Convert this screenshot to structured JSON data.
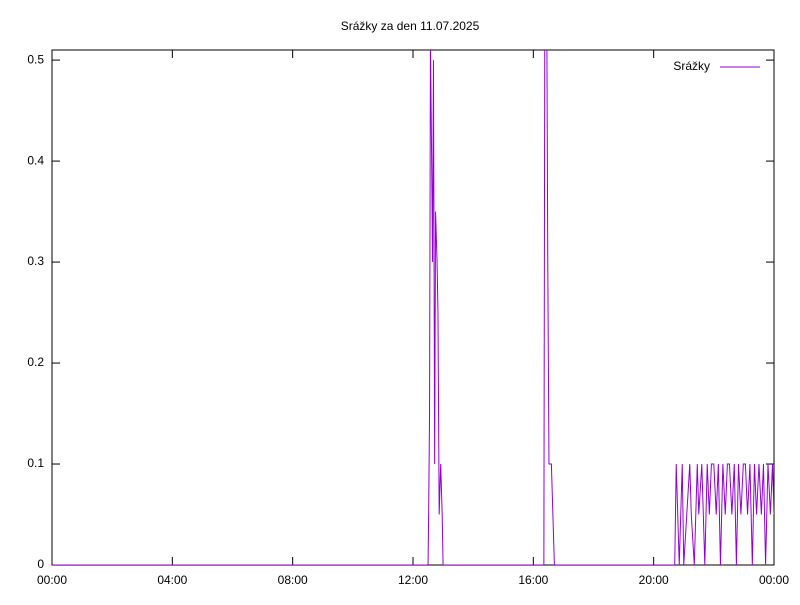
{
  "chart_data": {
    "type": "line",
    "title": "Srážky za den 11.07.2025",
    "x": [
      0,
      12.5,
      12.52,
      12.55,
      12.58,
      12.62,
      12.65,
      12.68,
      12.72,
      12.75,
      12.8,
      12.83,
      12.87,
      12.92,
      12.97,
      13.0,
      16.35,
      16.38,
      16.45,
      16.48,
      16.52,
      16.6,
      16.65,
      16.7,
      20.7,
      20.75,
      20.8,
      20.85,
      20.95,
      21.0,
      21.2,
      21.25,
      21.35,
      21.45,
      21.5,
      21.6,
      21.7,
      21.78,
      21.85,
      21.92,
      22.0,
      22.08,
      22.15,
      22.22,
      22.3,
      22.38,
      22.45,
      22.52,
      22.6,
      22.68,
      22.75,
      22.82,
      22.9,
      22.98,
      23.05,
      23.12,
      23.2,
      23.28,
      23.35,
      23.42,
      23.5,
      23.58,
      23.65,
      23.72,
      23.8,
      23.88,
      23.95,
      24.0
    ],
    "series": [
      {
        "name": "Srážky",
        "color": "#9400d3",
        "values": [
          0,
          0,
          0.05,
          0.15,
          0.52,
          0.4,
          0.3,
          0.5,
          0.1,
          0.35,
          0.3,
          0.25,
          0.05,
          0.1,
          0.05,
          0,
          0,
          0.52,
          0.52,
          0.3,
          0.1,
          0.1,
          0.05,
          0,
          0,
          0.1,
          0.05,
          0,
          0.1,
          0,
          0.1,
          0.05,
          0,
          0.1,
          0.05,
          0.1,
          0,
          0.1,
          0.05,
          0.1,
          0.1,
          0.05,
          0.1,
          0,
          0.1,
          0.05,
          0.1,
          0.1,
          0.05,
          0.1,
          0,
          0.1,
          0.05,
          0.1,
          0.1,
          0.05,
          0.1,
          0,
          0.1,
          0.05,
          0.1,
          0.05,
          0.1,
          0,
          0.1,
          0.05,
          0.1,
          0.05
        ]
      }
    ],
    "xlim": [
      0,
      24
    ],
    "xticks": [
      {
        "value": 0,
        "label": "00:00"
      },
      {
        "value": 4,
        "label": "04:00"
      },
      {
        "value": 8,
        "label": "08:00"
      },
      {
        "value": 12,
        "label": "12:00"
      },
      {
        "value": 16,
        "label": "16:00"
      },
      {
        "value": 20,
        "label": "20:00"
      },
      {
        "value": 24,
        "label": "00:00"
      }
    ],
    "ylim": [
      0,
      0.51
    ],
    "yticks": [
      0,
      0.1,
      0.2,
      0.3,
      0.4,
      0.5
    ],
    "legend": "top-right"
  }
}
